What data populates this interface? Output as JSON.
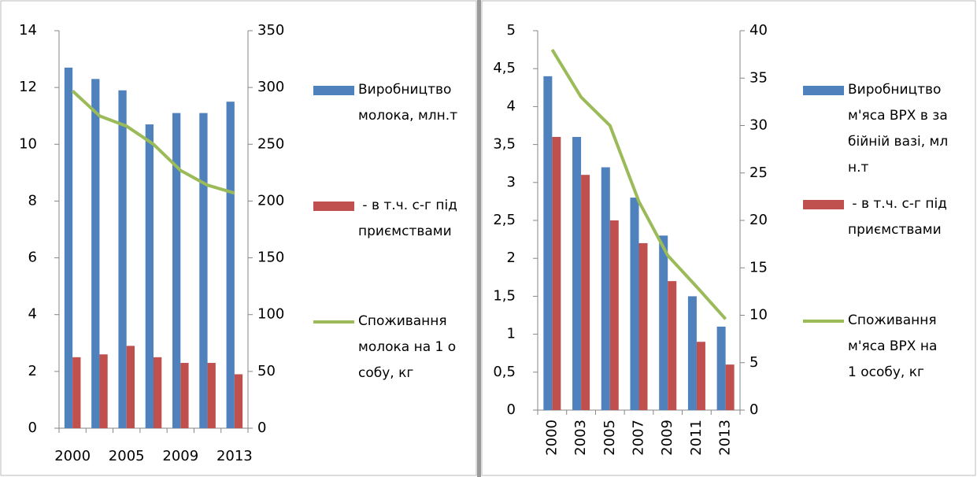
{
  "chart_data": [
    {
      "type": "bar",
      "categories": [
        "2000",
        null,
        "2005",
        null,
        "2009",
        null,
        "2013"
      ],
      "series": [
        {
          "name": "Виробництво молока, млн.т",
          "color": "#4f81bd",
          "values": [
            12.7,
            12.3,
            11.9,
            10.7,
            11.1,
            11.1,
            11.5
          ]
        },
        {
          "name": " - в т.ч. с-г підприємствами",
          "color": "#c0504d",
          "values": [
            2.5,
            2.6,
            2.9,
            2.5,
            2.3,
            2.3,
            1.9
          ]
        },
        {
          "name": "Споживання молока на 1 особу, кг",
          "color": "#9bbb59",
          "type": "line",
          "axis": "y2",
          "values": [
            297,
            275,
            266,
            250,
            227,
            214,
            207
          ]
        }
      ],
      "ylim": [
        0,
        14
      ],
      "yticks": [
        0,
        2,
        4,
        6,
        8,
        10,
        12,
        14
      ],
      "y2lim": [
        0,
        350
      ],
      "y2ticks": [
        0,
        50,
        100,
        150,
        200,
        250,
        300,
        350
      ],
      "xlabel_rotation": 0
    },
    {
      "type": "bar",
      "categories": [
        "2000",
        "2003",
        "2005",
        "2007",
        "2009",
        "2011",
        "2013"
      ],
      "series": [
        {
          "name": "Виробництво м'яса ВРХ в забійній вазі, млн.т",
          "color": "#4f81bd",
          "values": [
            4.4,
            3.6,
            3.2,
            2.8,
            2.3,
            1.5,
            1.1
          ]
        },
        {
          "name": " - в т.ч. с-г підприємствами",
          "color": "#c0504d",
          "values": [
            3.6,
            3.1,
            2.5,
            2.2,
            1.7,
            0.9,
            0.6
          ]
        },
        {
          "name": "Споживання м'яса ВРХ на 1 особу, кг",
          "color": "#9bbb59",
          "type": "line",
          "axis": "y2",
          "values": [
            38,
            33,
            30,
            22,
            16.3,
            13,
            9.6
          ]
        }
      ],
      "ylim": [
        0,
        5
      ],
      "yticks": [
        0,
        {
          "value": 0.5,
          "label": "0,5"
        },
        1,
        {
          "value": 1.5,
          "label": "1,5"
        },
        2,
        {
          "value": 2.5,
          "label": "2,5"
        },
        3,
        {
          "value": 3.5,
          "label": "3,5"
        },
        4,
        {
          "value": 4.5,
          "label": "4,5"
        },
        5
      ],
      "y2lim": [
        0,
        40
      ],
      "y2ticks": [
        0,
        5,
        10,
        15,
        20,
        25,
        30,
        35,
        40
      ],
      "xlabel_rotation": -90
    }
  ]
}
